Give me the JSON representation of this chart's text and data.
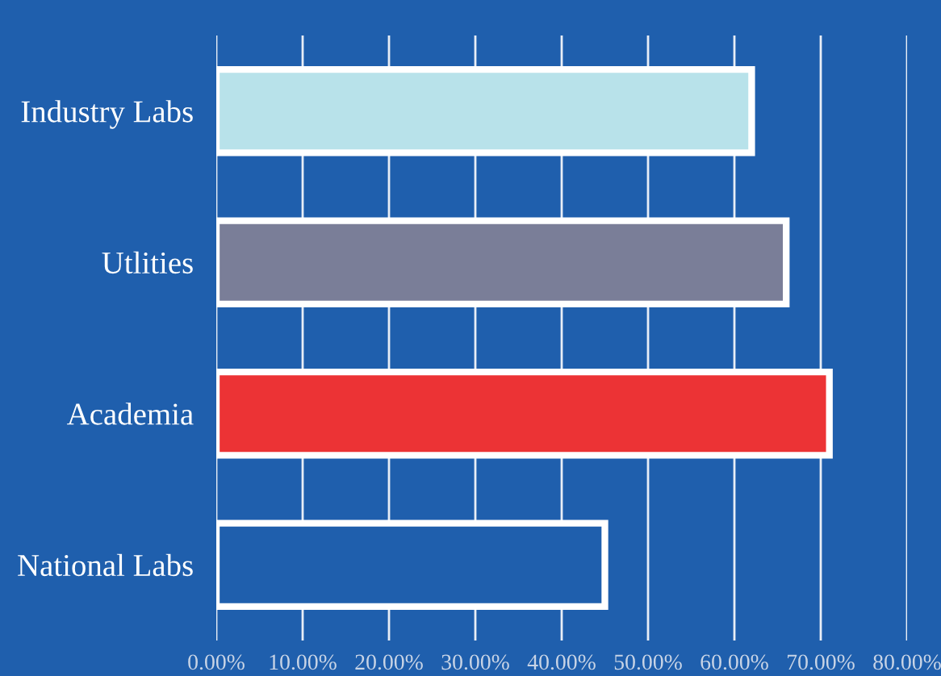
{
  "chart_data": {
    "type": "bar",
    "orientation": "horizontal",
    "categories": [
      "Industry Labs",
      "Utlities",
      "Academia",
      "National Labs"
    ],
    "values": [
      62,
      66,
      71,
      45
    ],
    "colors": [
      "#b8e2ea",
      "#7a7e98",
      "#ec3335",
      "#1f5fad"
    ],
    "xlim": [
      0,
      80
    ],
    "xticks": [
      {
        "value": 0,
        "label": "0.00%"
      },
      {
        "value": 10,
        "label": "10.00%"
      },
      {
        "value": 20,
        "label": "20.00%"
      },
      {
        "value": 30,
        "label": "30.00%"
      },
      {
        "value": 40,
        "label": "40.00%"
      },
      {
        "value": 50,
        "label": "50.00%"
      },
      {
        "value": 60,
        "label": "60.00%"
      },
      {
        "value": 70,
        "label": "70.00%"
      },
      {
        "value": 80,
        "label": "80.00%"
      }
    ],
    "grid": "x"
  }
}
